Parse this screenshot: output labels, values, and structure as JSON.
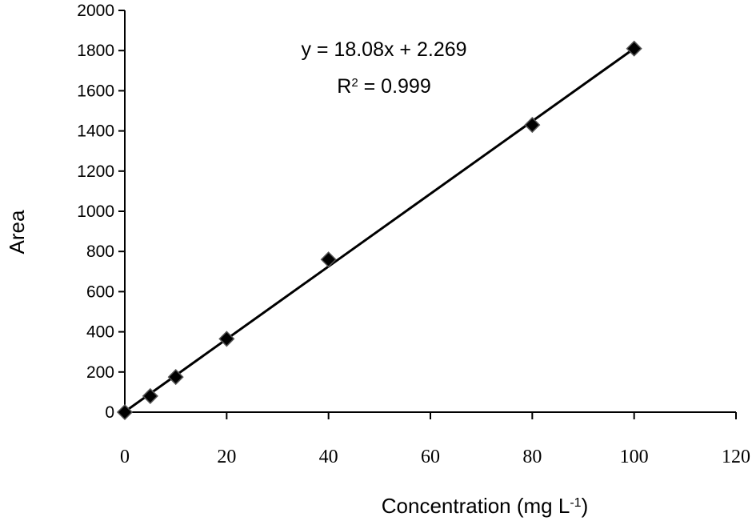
{
  "chart_data": {
    "type": "scatter",
    "title": "",
    "xlabel": "Concentration (mg L",
    "xlabel_sup": "-1",
    "xlabel_end": ")",
    "ylabel": "Area",
    "xlim": [
      0,
      120
    ],
    "ylim": [
      0,
      2000
    ],
    "xticks": [
      "0",
      "20",
      "40",
      "60",
      "80",
      "100",
      "120"
    ],
    "yticks": [
      "0",
      "200",
      "400",
      "600",
      "800",
      "1000",
      "1200",
      "1400",
      "1600",
      "1800",
      "2000"
    ],
    "grid": false,
    "legend": "none",
    "marker": "diamond",
    "marker_color": "#000000",
    "series": [
      {
        "points": [
          {
            "x": 0,
            "y": 0
          },
          {
            "x": 5,
            "y": 80
          },
          {
            "x": 10,
            "y": 175
          },
          {
            "x": 20,
            "y": 365
          },
          {
            "x": 40,
            "y": 760
          },
          {
            "x": 80,
            "y": 1430
          },
          {
            "x": 100,
            "y": 1810
          }
        ]
      }
    ],
    "trendline": {
      "slope": 18.08,
      "intercept": 2.269,
      "x_range": [
        0,
        100
      ]
    },
    "annotations": {
      "equation": "y = 18.08x + 2.269",
      "r2_prefix": "R",
      "r2_sup": "2",
      "r2_suffix": " = 0.999"
    }
  }
}
